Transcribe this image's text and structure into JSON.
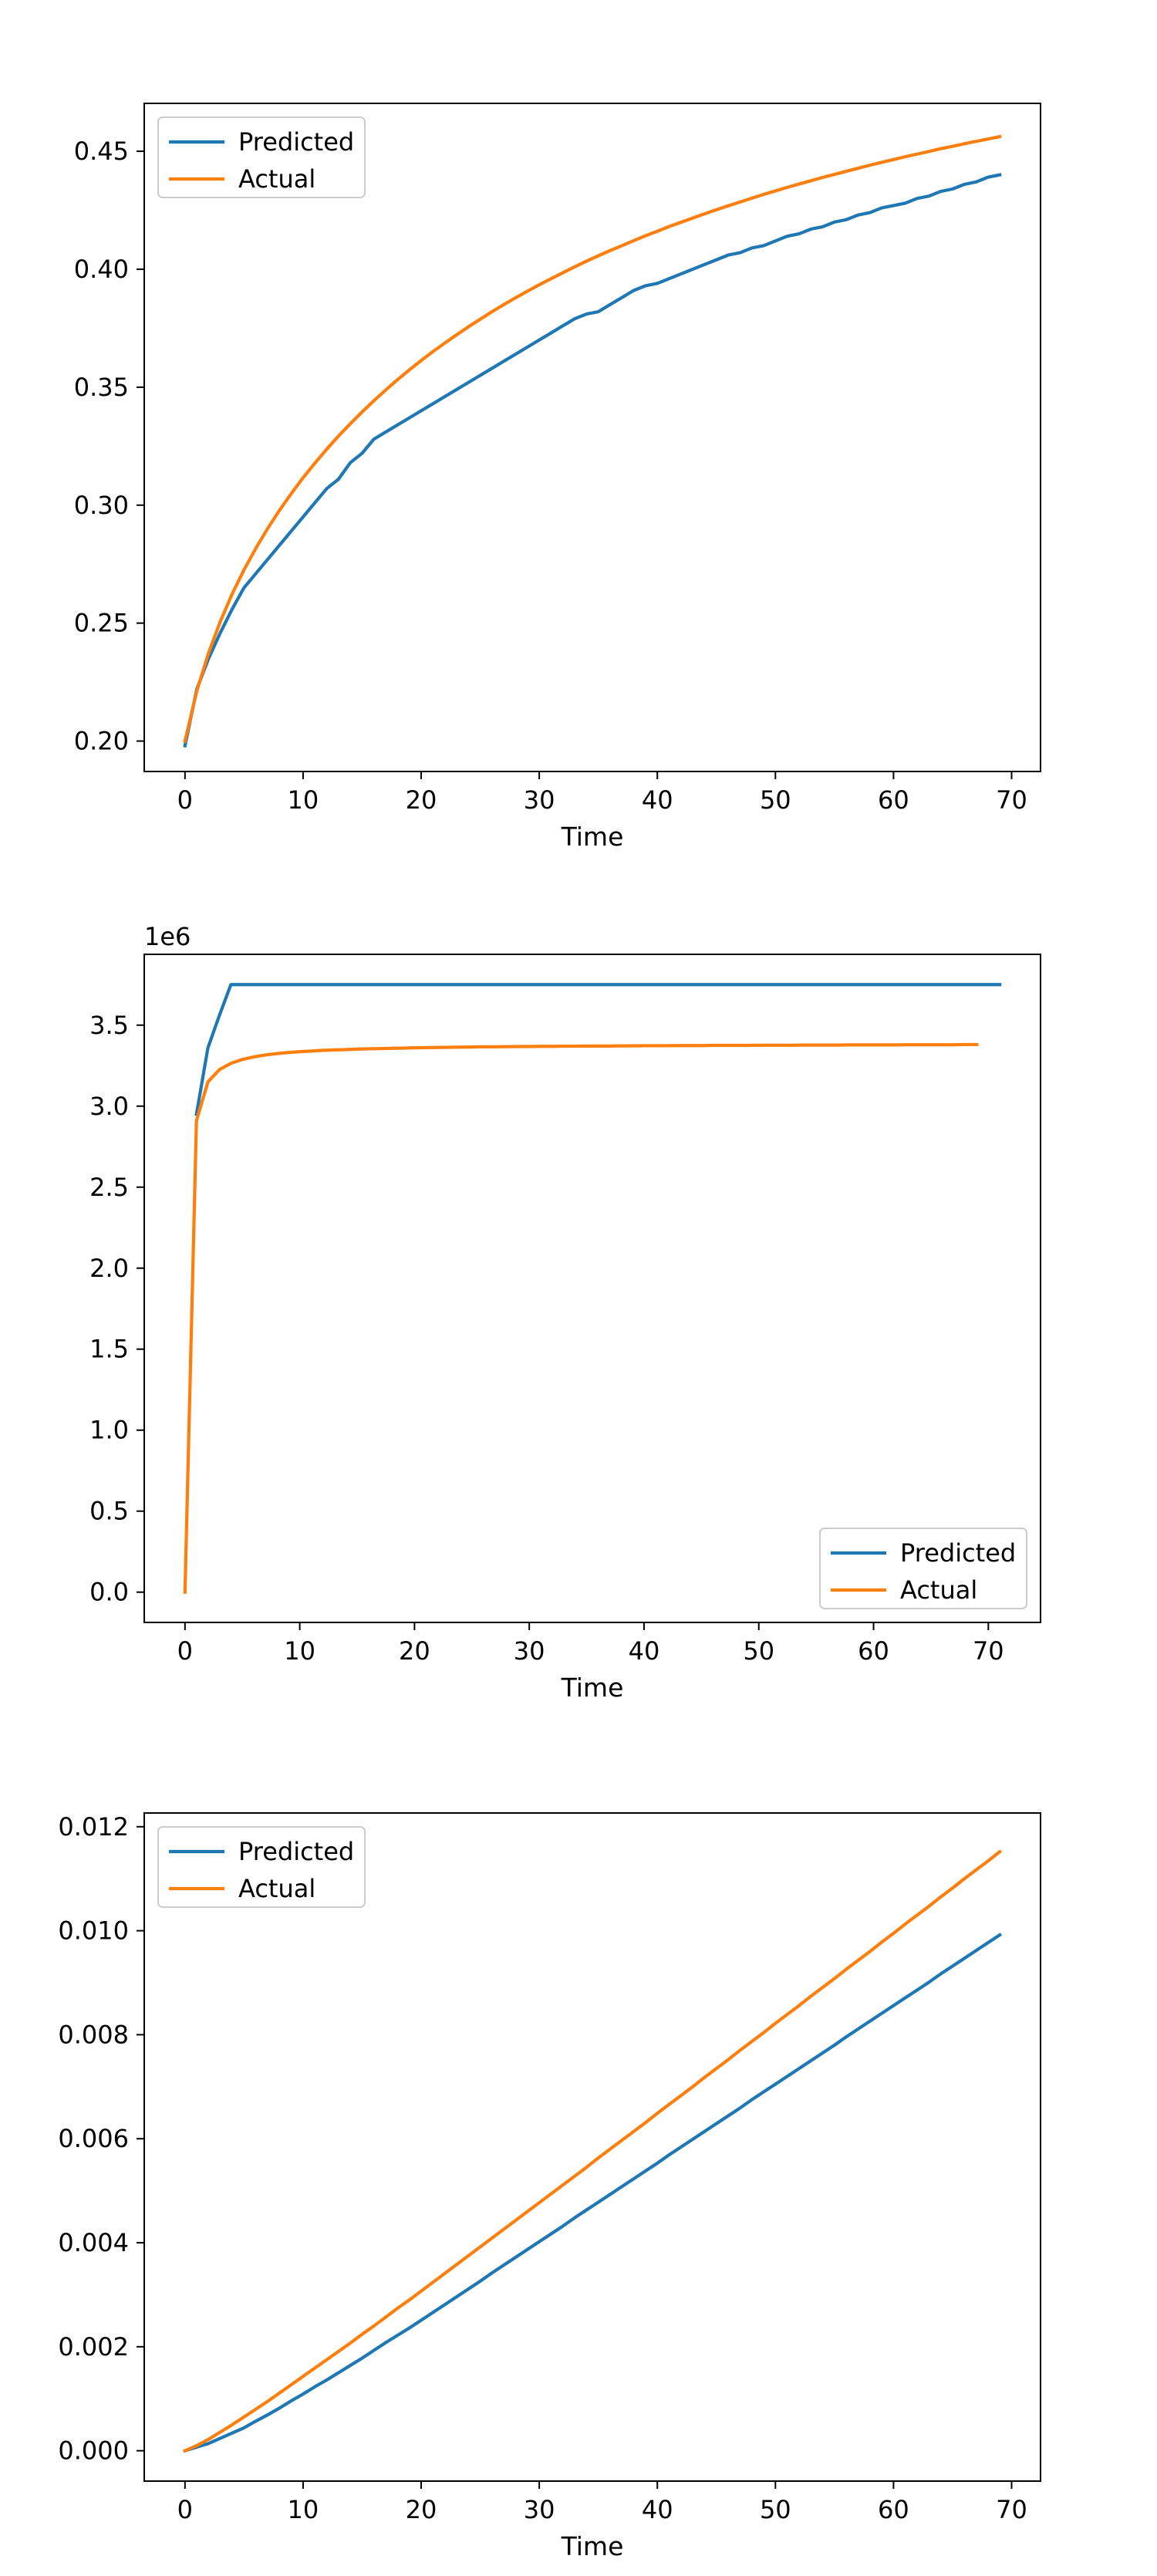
{
  "chart_data": [
    {
      "type": "line",
      "title": "",
      "xlabel": "Time",
      "ylabel": "",
      "xlim": [
        -3.45,
        72.45
      ],
      "ylim": [
        0.1871,
        0.4703
      ],
      "xticks": [
        0,
        10,
        20,
        30,
        40,
        50,
        60,
        70
      ],
      "yticks": [
        0.2,
        0.25,
        0.3,
        0.35,
        0.4,
        0.45
      ],
      "ytick_labels": [
        "0.20",
        "0.25",
        "0.30",
        "0.35",
        "0.40",
        "0.45"
      ],
      "offset_text": "",
      "legend_position": "upper left",
      "grid": false,
      "series": [
        {
          "name": "Predicted",
          "color": "#1f77b4",
          "x": [
            0,
            1,
            2,
            3,
            4,
            5,
            6,
            7,
            8,
            9,
            10,
            11,
            12,
            13,
            14,
            15,
            16,
            17,
            18,
            19,
            20,
            21,
            22,
            23,
            24,
            25,
            26,
            27,
            28,
            29,
            30,
            31,
            32,
            33,
            34,
            35,
            36,
            37,
            38,
            39,
            40,
            41,
            42,
            43,
            44,
            45,
            46,
            47,
            48,
            49,
            50,
            51,
            52,
            53,
            54,
            55,
            56,
            57,
            58,
            59,
            60,
            61,
            62,
            63,
            64,
            65,
            66,
            67,
            68,
            69
          ],
          "y": [
            0.198,
            0.222,
            0.235,
            0.246,
            0.256,
            0.265,
            0.271,
            0.277,
            0.283,
            0.289,
            0.295,
            0.301,
            0.307,
            0.311,
            0.318,
            0.322,
            0.328,
            0.331,
            0.334,
            0.337,
            0.34,
            0.343,
            0.346,
            0.349,
            0.352,
            0.355,
            0.358,
            0.361,
            0.364,
            0.367,
            0.37,
            0.373,
            0.376,
            0.379,
            0.381,
            0.382,
            0.385,
            0.388,
            0.391,
            0.393,
            0.394,
            0.396,
            0.398,
            0.4,
            0.402,
            0.404,
            0.406,
            0.407,
            0.409,
            0.41,
            0.412,
            0.414,
            0.415,
            0.417,
            0.418,
            0.42,
            0.421,
            0.423,
            0.424,
            0.426,
            0.427,
            0.428,
            0.43,
            0.431,
            0.433,
            0.434,
            0.436,
            0.437,
            0.439,
            0.44
          ]
        },
        {
          "name": "Actual",
          "color": "#ff7f0e",
          "x": [
            0,
            1,
            2,
            3,
            4,
            5,
            6,
            7,
            8,
            9,
            10,
            11,
            12,
            13,
            14,
            15,
            16,
            17,
            18,
            19,
            20,
            21,
            22,
            23,
            24,
            25,
            26,
            27,
            28,
            29,
            30,
            31,
            32,
            33,
            34,
            35,
            36,
            37,
            38,
            39,
            40,
            41,
            42,
            43,
            44,
            45,
            46,
            47,
            48,
            49,
            50,
            51,
            52,
            53,
            54,
            55,
            56,
            57,
            58,
            59,
            60,
            61,
            62,
            63,
            64,
            65,
            66,
            67,
            68,
            69
          ],
          "y": [
            0.2,
            0.2212,
            0.2374,
            0.2508,
            0.2624,
            0.2726,
            0.2817,
            0.2901,
            0.2978,
            0.3049,
            0.3116,
            0.3178,
            0.3237,
            0.3293,
            0.3345,
            0.3395,
            0.3443,
            0.3488,
            0.3532,
            0.3573,
            0.3613,
            0.3651,
            0.3687,
            0.3722,
            0.3756,
            0.3788,
            0.382,
            0.385,
            0.3879,
            0.3907,
            0.3934,
            0.396,
            0.3985,
            0.401,
            0.4034,
            0.4057,
            0.4079,
            0.41,
            0.4121,
            0.4142,
            0.4161,
            0.4181,
            0.4199,
            0.4217,
            0.4235,
            0.4252,
            0.4269,
            0.4285,
            0.4301,
            0.4317,
            0.4332,
            0.4347,
            0.4361,
            0.4375,
            0.4389,
            0.4402,
            0.4415,
            0.4428,
            0.4441,
            0.4453,
            0.4465,
            0.4477,
            0.4488,
            0.4499,
            0.4511,
            0.4521,
            0.4532,
            0.4542,
            0.4552,
            0.4562
          ]
        }
      ]
    },
    {
      "type": "line",
      "title": "",
      "xlabel": "Time",
      "ylabel": "",
      "xlim": [
        -3.55,
        74.55
      ],
      "ylim": [
        -187000,
        3937000
      ],
      "xticks": [
        0,
        10,
        20,
        30,
        40,
        50,
        60,
        70
      ],
      "yticks": [
        0,
        500000,
        1000000,
        1500000,
        2000000,
        2500000,
        3000000,
        3500000
      ],
      "ytick_labels": [
        "0.0",
        "0.5",
        "1.0",
        "1.5",
        "2.0",
        "2.5",
        "3.0",
        "3.5"
      ],
      "offset_text": "1e6",
      "legend_position": "lower right",
      "grid": false,
      "series": [
        {
          "name": "Predicted",
          "color": "#1f77b4",
          "x": [
            1,
            2,
            3,
            4,
            5,
            71
          ],
          "y": [
            2950000,
            3360000,
            3560000,
            3750000,
            3750000,
            3750000
          ]
        },
        {
          "name": "Actual",
          "color": "#ff7f0e",
          "x": [
            0,
            1,
            2,
            3,
            4,
            5,
            6,
            7,
            8,
            9,
            10,
            11,
            12,
            13,
            14,
            15,
            16,
            17,
            18,
            19,
            20,
            21,
            22,
            23,
            24,
            25,
            26,
            27,
            28,
            29,
            30,
            31,
            32,
            33,
            34,
            35,
            36,
            37,
            38,
            39,
            40,
            41,
            42,
            43,
            44,
            45,
            46,
            47,
            48,
            49,
            50,
            51,
            52,
            53,
            54,
            55,
            56,
            57,
            58,
            59,
            60,
            61,
            62,
            63,
            64,
            65,
            66,
            67,
            68,
            69
          ],
          "y": [
            0,
            2910000,
            3150000,
            3225000,
            3264000,
            3288000,
            3304000,
            3316000,
            3324000,
            3331000,
            3336000,
            3340000,
            3344000,
            3347000,
            3349000,
            3352000,
            3354000,
            3355000,
            3357000,
            3358000,
            3360000,
            3361000,
            3362000,
            3363000,
            3364000,
            3365000,
            3366000,
            3366000,
            3367000,
            3368000,
            3368000,
            3369000,
            3369000,
            3370000,
            3370000,
            3371000,
            3371000,
            3371000,
            3372000,
            3372000,
            3373000,
            3373000,
            3373000,
            3374000,
            3374000,
            3374000,
            3375000,
            3375000,
            3375000,
            3375000,
            3376000,
            3376000,
            3376000,
            3376000,
            3377000,
            3377000,
            3377000,
            3377000,
            3378000,
            3378000,
            3378000,
            3378000,
            3378000,
            3379000,
            3379000,
            3379000,
            3379000,
            3379000,
            3380000,
            3380000
          ]
        }
      ]
    },
    {
      "type": "line",
      "title": "",
      "xlabel": "Time",
      "ylabel": "",
      "xlim": [
        -3.45,
        72.45
      ],
      "ylim": [
        -0.000584,
        0.012264
      ],
      "xticks": [
        0,
        10,
        20,
        30,
        40,
        50,
        60,
        70
      ],
      "yticks": [
        0,
        0.002,
        0.004,
        0.006,
        0.008,
        0.01,
        0.012
      ],
      "ytick_labels": [
        "0.000",
        "0.002",
        "0.004",
        "0.006",
        "0.008",
        "0.010",
        "0.012"
      ],
      "offset_text": "",
      "legend_position": "upper left",
      "grid": false,
      "series": [
        {
          "name": "Predicted",
          "color": "#1f77b4",
          "x": [
            0,
            1,
            2,
            3,
            4,
            5,
            6,
            7,
            8,
            9,
            10,
            11,
            12,
            13,
            14,
            15,
            16,
            17,
            18,
            19,
            20,
            21,
            22,
            23,
            24,
            25,
            26,
            27,
            28,
            29,
            30,
            31,
            32,
            33,
            34,
            35,
            36,
            37,
            38,
            39,
            40,
            41,
            42,
            43,
            44,
            45,
            46,
            47,
            48,
            49,
            50,
            51,
            52,
            53,
            54,
            55,
            56,
            57,
            58,
            59,
            60,
            61,
            62,
            63,
            64,
            65,
            66,
            67,
            68,
            69
          ],
          "y": [
            0.0,
            7e-05,
            0.00014,
            0.00024,
            0.00034,
            0.00044,
            0.00057,
            0.00069,
            0.00082,
            0.00096,
            0.00109,
            0.00123,
            0.00136,
            0.0015,
            0.00164,
            0.00178,
            0.00193,
            0.00208,
            0.00222,
            0.00236,
            0.00251,
            0.00266,
            0.00281,
            0.00296,
            0.00311,
            0.00326,
            0.00342,
            0.00357,
            0.00372,
            0.00387,
            0.00402,
            0.00417,
            0.00432,
            0.00448,
            0.00463,
            0.00478,
            0.00493,
            0.00508,
            0.00523,
            0.00538,
            0.00553,
            0.00569,
            0.00584,
            0.00599,
            0.00614,
            0.00629,
            0.00644,
            0.00659,
            0.00675,
            0.0069,
            0.00705,
            0.0072,
            0.00735,
            0.0075,
            0.00765,
            0.0078,
            0.00796,
            0.00811,
            0.00826,
            0.00841,
            0.00856,
            0.00871,
            0.00886,
            0.00901,
            0.00917,
            0.00932,
            0.00947,
            0.00962,
            0.00977,
            0.00992
          ]
        },
        {
          "name": "Actual",
          "color": "#ff7f0e",
          "x": [
            0,
            1,
            2,
            3,
            4,
            5,
            6,
            7,
            8,
            9,
            10,
            11,
            12,
            13,
            14,
            15,
            16,
            17,
            18,
            19,
            20,
            21,
            22,
            23,
            24,
            25,
            26,
            27,
            28,
            29,
            30,
            31,
            32,
            33,
            34,
            35,
            36,
            37,
            38,
            39,
            40,
            41,
            42,
            43,
            44,
            45,
            46,
            47,
            48,
            49,
            50,
            51,
            52,
            53,
            54,
            55,
            56,
            57,
            58,
            59,
            60,
            61,
            62,
            63,
            64,
            65,
            66,
            67,
            68,
            69
          ],
          "y": [
            0.0,
            0.0001,
            0.00022,
            0.00036,
            0.0005,
            0.00065,
            0.0008,
            0.00095,
            0.00111,
            0.00127,
            0.00143,
            0.00159,
            0.00175,
            0.00191,
            0.00207,
            0.00224,
            0.0024,
            0.00257,
            0.00274,
            0.0029,
            0.00307,
            0.00324,
            0.00341,
            0.00358,
            0.00375,
            0.00392,
            0.00409,
            0.00426,
            0.00443,
            0.0046,
            0.00477,
            0.00494,
            0.00511,
            0.00528,
            0.00545,
            0.00563,
            0.0058,
            0.00597,
            0.00614,
            0.00631,
            0.00649,
            0.00666,
            0.00683,
            0.007,
            0.00718,
            0.00735,
            0.00752,
            0.0077,
            0.00787,
            0.00804,
            0.00822,
            0.00839,
            0.00856,
            0.00874,
            0.00891,
            0.00908,
            0.00926,
            0.00943,
            0.0096,
            0.00978,
            0.00995,
            0.01013,
            0.0103,
            0.01047,
            0.01065,
            0.01082,
            0.011,
            0.01117,
            0.01134,
            0.01152
          ]
        }
      ]
    }
  ]
}
